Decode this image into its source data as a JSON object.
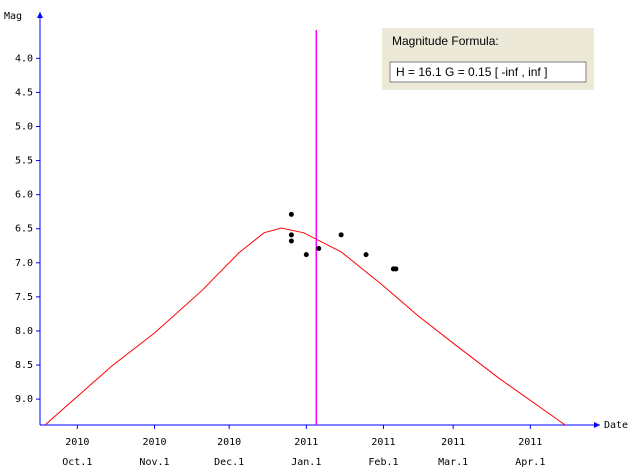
{
  "chart_data": {
    "type": "scatter",
    "ylabel": "Mag",
    "xlabel": "Date",
    "legend_title": "Magnitude Formula:",
    "formula": "H = 16.1   G = 0.15   [ -inf ,  inf ]",
    "ylim": [
      9.38,
      3.32
    ],
    "xlim": [
      "2010-09-16",
      "2011-04-29"
    ],
    "yticks": [
      {
        "value": 4,
        "label": "4.0"
      },
      {
        "value": 4.5,
        "label": "4.5"
      },
      {
        "value": 5,
        "label": "5.0"
      },
      {
        "value": 5.5,
        "label": "5.5"
      },
      {
        "value": 6,
        "label": "6.0"
      },
      {
        "value": 6.5,
        "label": "6.5"
      },
      {
        "value": 7,
        "label": "7.0"
      },
      {
        "value": 7.5,
        "label": "7.5"
      },
      {
        "value": 8,
        "label": "8.0"
      },
      {
        "value": 8.5,
        "label": "8.5"
      },
      {
        "value": 9,
        "label": "9.0"
      }
    ],
    "xticks": [
      {
        "value": "2010-10-01",
        "label": [
          "2010",
          "Oct.1"
        ]
      },
      {
        "value": "2010-11-01",
        "label": [
          "2010",
          "Nov.1"
        ]
      },
      {
        "value": "2010-12-01",
        "label": [
          "2010",
          "Dec.1"
        ]
      },
      {
        "value": "2011-01-01",
        "label": [
          "2011",
          "Jan.1"
        ]
      },
      {
        "value": "2011-02-01",
        "label": [
          "2011",
          "Feb.1"
        ]
      },
      {
        "value": "2011-03-01",
        "label": [
          "2011",
          "Mar.1"
        ]
      },
      {
        "value": "2011-04-01",
        "label": [
          "2011",
          "Apr.1"
        ]
      }
    ],
    "marker_date": "2011-01-05",
    "marker_color": "#ff00ff",
    "observations": {
      "color": "#000000",
      "x": [
        "2010-12-26",
        "2010-12-26",
        "2010-12-26",
        "2011-01-01",
        "2011-01-06",
        "2011-01-15",
        "2011-01-25",
        "2011-02-05",
        "2011-02-06"
      ],
      "values": [
        6.29,
        6.59,
        6.68,
        6.88,
        6.79,
        6.59,
        6.88,
        7.09,
        7.09
      ]
    },
    "curve": {
      "color": "#ff0000",
      "x": [
        "2010-09-18",
        "2010-10-15",
        "2010-11-01",
        "2010-11-20",
        "2010-12-05",
        "2010-12-15",
        "2010-12-22",
        "2010-12-31",
        "2011-01-15",
        "2011-02-01",
        "2011-02-15",
        "2011-03-01",
        "2011-03-20",
        "2011-04-15"
      ],
      "values": [
        9.38,
        8.51,
        8.03,
        7.41,
        6.85,
        6.56,
        6.49,
        6.56,
        6.84,
        7.34,
        7.78,
        8.18,
        8.71,
        9.38
      ]
    }
  }
}
